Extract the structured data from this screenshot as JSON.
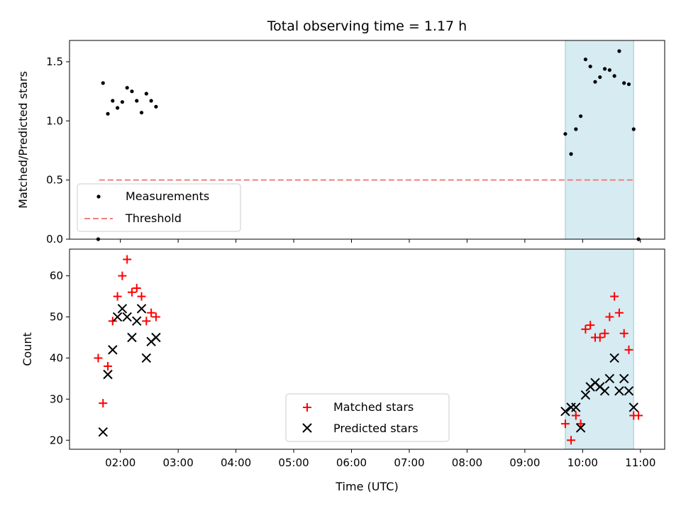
{
  "chart_data": [
    {
      "type": "scatter",
      "title": "Total observing time = 1.17 h",
      "ylabel": "Matched/Predicted stars",
      "xlabel": "",
      "ylim": [
        0,
        1.68
      ],
      "yticks": [
        "0.0",
        "0.5",
        "1.0",
        "1.5"
      ],
      "ytick_values": [
        0,
        0.5,
        1.0,
        1.5
      ],
      "xlim_hours": [
        1.12,
        11.42
      ],
      "xtick_values_hours": [
        2,
        3,
        4,
        5,
        6,
        7,
        8,
        9,
        10,
        11
      ],
      "xtick_labels_shown": false,
      "grid": false,
      "legend_placement": "lower-left",
      "shaded_span": {
        "start": "09:42",
        "end": "10:53",
        "color": "#add8e6"
      },
      "threshold": {
        "name": "Threshold",
        "value": 0.5,
        "start": "01:38",
        "end": "10:53",
        "color": "#f08080",
        "style": "dashed"
      },
      "series": [
        {
          "name": "Measurements",
          "marker": "dot",
          "color": "#000000",
          "points": [
            [
              "01:37",
              0.0
            ],
            [
              "01:42",
              1.32
            ],
            [
              "01:47",
              1.06
            ],
            [
              "01:52",
              1.17
            ],
            [
              "01:57",
              1.11
            ],
            [
              "02:02",
              1.16
            ],
            [
              "02:07",
              1.28
            ],
            [
              "02:12",
              1.25
            ],
            [
              "02:17",
              1.17
            ],
            [
              "02:22",
              1.07
            ],
            [
              "02:27",
              1.23
            ],
            [
              "02:32",
              1.17
            ],
            [
              "02:37",
              1.12
            ],
            [
              "09:42",
              0.89
            ],
            [
              "09:48",
              0.72
            ],
            [
              "09:53",
              0.93
            ],
            [
              "09:58",
              1.04
            ],
            [
              "10:03",
              1.52
            ],
            [
              "10:08",
              1.46
            ],
            [
              "10:13",
              1.33
            ],
            [
              "10:18",
              1.37
            ],
            [
              "10:23",
              1.44
            ],
            [
              "10:28",
              1.43
            ],
            [
              "10:33",
              1.38
            ],
            [
              "10:38",
              1.59
            ],
            [
              "10:43",
              1.32
            ],
            [
              "10:48",
              1.31
            ],
            [
              "10:53",
              0.93
            ],
            [
              "10:58",
              0.0
            ]
          ]
        }
      ]
    },
    {
      "type": "scatter",
      "title": "",
      "ylabel": "Count",
      "xlabel": "Time (UTC)",
      "ylim": [
        17.8,
        66.5
      ],
      "yticks": [
        "20",
        "30",
        "40",
        "50",
        "60"
      ],
      "ytick_values": [
        20,
        30,
        40,
        50,
        60
      ],
      "xlim_hours": [
        1.12,
        11.42
      ],
      "xtick_values_hours": [
        2,
        3,
        4,
        5,
        6,
        7,
        8,
        9,
        10,
        11
      ],
      "xtick_labels": [
        "02:00",
        "03:00",
        "04:00",
        "05:00",
        "06:00",
        "07:00",
        "08:00",
        "09:00",
        "10:00",
        "11:00"
      ],
      "grid": false,
      "legend_placement": "lower-center",
      "shaded_span": {
        "start": "09:42",
        "end": "10:53",
        "color": "#add8e6"
      },
      "series": [
        {
          "name": "Matched stars",
          "marker": "plus",
          "color": "#ff0000",
          "points": [
            [
              "01:37",
              40
            ],
            [
              "01:42",
              29
            ],
            [
              "01:47",
              38
            ],
            [
              "01:52",
              49
            ],
            [
              "01:57",
              55
            ],
            [
              "02:02",
              60
            ],
            [
              "02:07",
              64
            ],
            [
              "02:12",
              56
            ],
            [
              "02:17",
              57
            ],
            [
              "02:22",
              55
            ],
            [
              "02:27",
              49
            ],
            [
              "02:32",
              51
            ],
            [
              "02:37",
              50
            ],
            [
              "09:42",
              24
            ],
            [
              "09:48",
              20
            ],
            [
              "09:53",
              26
            ],
            [
              "09:58",
              24
            ],
            [
              "10:03",
              47
            ],
            [
              "10:08",
              48
            ],
            [
              "10:13",
              45
            ],
            [
              "10:18",
              45
            ],
            [
              "10:23",
              46
            ],
            [
              "10:28",
              50
            ],
            [
              "10:33",
              55
            ],
            [
              "10:38",
              51
            ],
            [
              "10:43",
              46
            ],
            [
              "10:48",
              42
            ],
            [
              "10:53",
              26
            ],
            [
              "10:58",
              26
            ]
          ]
        },
        {
          "name": "Predicted stars",
          "marker": "x",
          "color": "#000000",
          "points": [
            [
              "01:42",
              22
            ],
            [
              "01:47",
              36
            ],
            [
              "01:52",
              42
            ],
            [
              "01:57",
              50
            ],
            [
              "02:02",
              52
            ],
            [
              "02:07",
              50
            ],
            [
              "02:12",
              45
            ],
            [
              "02:17",
              49
            ],
            [
              "02:22",
              52
            ],
            [
              "02:27",
              40
            ],
            [
              "02:32",
              44
            ],
            [
              "02:37",
              45
            ],
            [
              "09:42",
              27
            ],
            [
              "09:48",
              28
            ],
            [
              "09:53",
              28
            ],
            [
              "09:58",
              23
            ],
            [
              "10:03",
              31
            ],
            [
              "10:08",
              33
            ],
            [
              "10:13",
              34
            ],
            [
              "10:18",
              33
            ],
            [
              "10:23",
              32
            ],
            [
              "10:28",
              35
            ],
            [
              "10:33",
              40
            ],
            [
              "10:38",
              32
            ],
            [
              "10:43",
              35
            ],
            [
              "10:48",
              32
            ],
            [
              "10:53",
              28
            ]
          ]
        }
      ]
    }
  ]
}
